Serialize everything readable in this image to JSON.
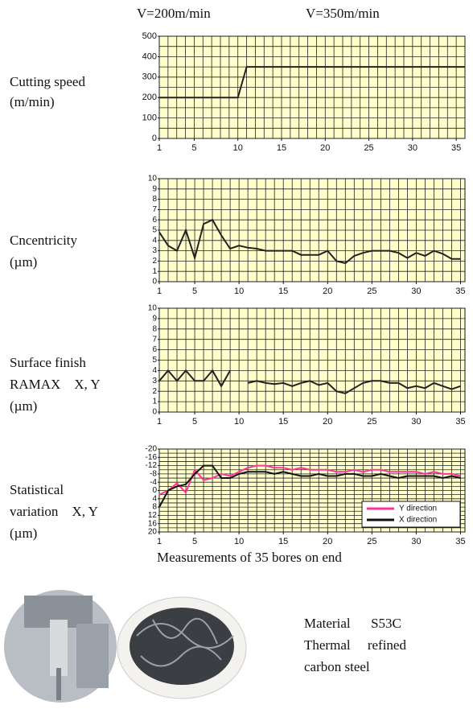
{
  "chart_data": [
    {
      "type": "line",
      "annotations": [
        "V=200m/min",
        "V=350m/min"
      ],
      "label": [
        "Cutting speed",
        "(m/min)"
      ],
      "x": [
        1,
        10,
        11,
        36
      ],
      "series": [
        {
          "color": "#222222",
          "values": [
            200,
            200,
            350,
            350
          ]
        }
      ],
      "xlim": [
        1,
        36
      ],
      "ylim": [
        0,
        500
      ],
      "xticks": [
        1,
        5,
        10,
        15,
        20,
        25,
        30,
        35
      ],
      "yticks": [
        0,
        100,
        200,
        300,
        400,
        500
      ],
      "grid": true,
      "grid_step": [
        1,
        50
      ],
      "plot_color": "#ffffcc"
    },
    {
      "type": "line",
      "label": [
        "Cncentricity",
        "(µm)"
      ],
      "x": [
        1,
        2,
        3,
        4,
        5,
        6,
        7,
        8,
        9,
        10,
        11,
        12,
        13,
        14,
        15,
        16,
        17,
        18,
        19,
        20,
        21,
        22,
        23,
        24,
        25,
        26,
        27,
        28,
        29,
        30,
        31,
        32,
        33,
        34,
        35
      ],
      "series": [
        {
          "color": "#222222",
          "values": [
            4.8,
            3.5,
            3,
            5,
            2.3,
            5.6,
            6,
            4.5,
            3.2,
            3.5,
            3.3,
            3.2,
            3,
            3,
            3,
            3,
            2.6,
            2.6,
            2.6,
            3,
            2,
            1.8,
            2.5,
            2.8,
            3,
            3,
            3,
            2.8,
            2.3,
            2.8,
            2.5,
            3,
            2.7,
            2.2,
            2.2
          ]
        }
      ],
      "xlim": [
        1,
        35.5
      ],
      "ylim": [
        0,
        10
      ],
      "xticks": [
        1,
        5,
        10,
        15,
        20,
        25,
        30,
        35
      ],
      "yticks": [
        0,
        1,
        2,
        3,
        4,
        5,
        6,
        7,
        8,
        9,
        10
      ],
      "grid": true,
      "grid_step": [
        1,
        1
      ],
      "plot_color": "#ffffcc"
    },
    {
      "type": "line",
      "label": [
        "Surface finish",
        "RAMAX    X, Y",
        "(µm)"
      ],
      "x": [
        1,
        2,
        3,
        4,
        5,
        6,
        7,
        8,
        9,
        10,
        11,
        12,
        13,
        14,
        15,
        16,
        17,
        18,
        19,
        20,
        21,
        22,
        23,
        24,
        25,
        26,
        27,
        28,
        29,
        30,
        31,
        32,
        33,
        34,
        35
      ],
      "series": [
        {
          "color": "#222222",
          "values": [
            3,
            4,
            3,
            4,
            3,
            3,
            4,
            2.5,
            4,
            null,
            2.8,
            3,
            2.8,
            2.7,
            2.8,
            2.5,
            2.8,
            3,
            2.6,
            2.8,
            2,
            1.8,
            2.3,
            2.8,
            3,
            3,
            2.8,
            2.8,
            2.3,
            2.5,
            2.3,
            2.8,
            2.5,
            2.2,
            2.5
          ]
        }
      ],
      "xlim": [
        1,
        35.5
      ],
      "ylim": [
        0,
        10
      ],
      "xticks": [
        1,
        5,
        10,
        15,
        20,
        25,
        30,
        35
      ],
      "yticks": [
        0,
        1,
        2,
        3,
        4,
        5,
        6,
        7,
        8,
        9,
        10
      ],
      "grid": true,
      "grid_step": [
        1,
        1
      ],
      "plot_color": "#ffffcc"
    },
    {
      "type": "line",
      "label": [
        "Statistical",
        "variation    X, Y",
        "(µm)"
      ],
      "x": [
        1,
        2,
        3,
        4,
        5,
        6,
        7,
        8,
        9,
        10,
        11,
        12,
        13,
        14,
        15,
        16,
        17,
        18,
        19,
        20,
        21,
        22,
        23,
        24,
        25,
        26,
        27,
        28,
        29,
        30,
        31,
        32,
        33,
        34,
        35
      ],
      "series": [
        {
          "name": "Y direction",
          "color": "#ff3399",
          "values": [
            2,
            0,
            -3.5,
            1,
            -10,
            -5,
            -6,
            -8,
            -7,
            -9,
            -11,
            -12,
            -12,
            -11,
            -11,
            -10,
            -11,
            -10,
            -10,
            -10,
            -9,
            -9,
            -10,
            -9,
            -10,
            -10,
            -9,
            -9,
            -9,
            -9,
            -8,
            -9,
            -8,
            -8,
            -7
          ]
        },
        {
          "name": "X direction",
          "color": "#111111",
          "values": [
            8,
            0,
            -2,
            -3,
            -8,
            -12,
            -12,
            -6,
            -6,
            -8,
            -9,
            -9,
            -9,
            -8,
            -9,
            -8,
            -7,
            -7,
            -8,
            -7,
            -7,
            -8,
            -8,
            -7,
            -7,
            -8,
            -7,
            -6,
            -7,
            -7,
            -7,
            -7,
            -6,
            -7,
            -6
          ]
        }
      ],
      "xlim": [
        1,
        35.5
      ],
      "ylim": [
        20,
        -20
      ],
      "xticks": [
        1,
        5,
        10,
        15,
        20,
        25,
        30,
        35
      ],
      "yticks": [
        -20,
        -16,
        -12,
        -8,
        -4,
        0,
        4,
        8,
        12,
        16,
        20
      ],
      "grid": true,
      "grid_step": [
        1,
        2
      ],
      "plot_color": "#ffffcc",
      "legend": "lower right"
    }
  ],
  "x_axis_title": "Measurements of 35 bores on end",
  "caption": [
    "Material      S53C",
    "Thermal     refined",
    "carbon steel"
  ]
}
